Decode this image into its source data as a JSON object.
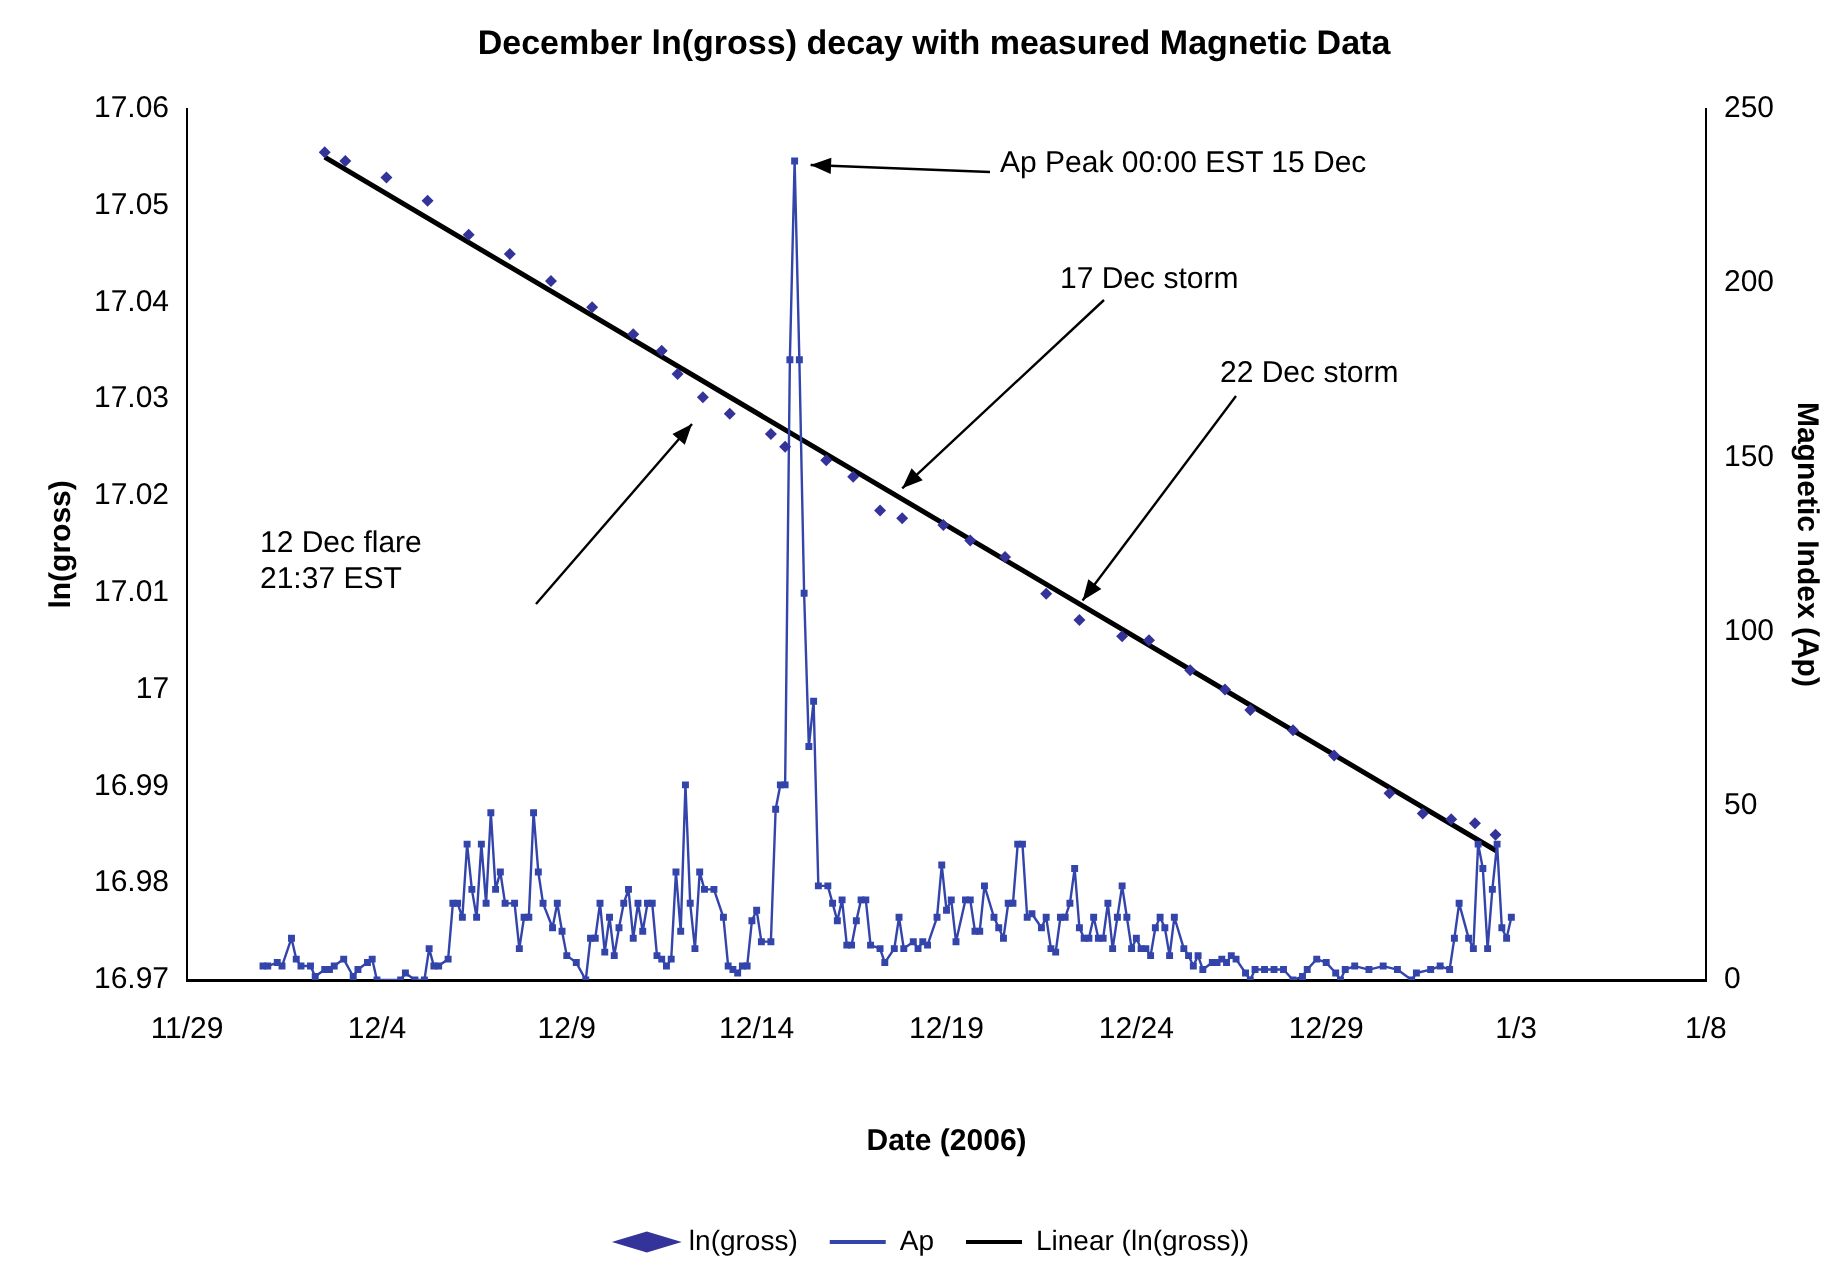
{
  "chart_data": {
    "type": "scatter",
    "title": "December ln(gross) decay with measured Magnetic Data",
    "xlabel": "Date (2006)",
    "ylabel": "ln(gross)",
    "y2label": "Magnetic Index (Ap)",
    "xlim": [
      "2006-11-29",
      "2007-01-08"
    ],
    "xticks": [
      {
        "value": "2006-11-29",
        "label": "11/29"
      },
      {
        "value": "2006-12-04",
        "label": "12/4"
      },
      {
        "value": "2006-12-09",
        "label": "12/9"
      },
      {
        "value": "2006-12-14",
        "label": "12/14"
      },
      {
        "value": "2006-12-19",
        "label": "12/19"
      },
      {
        "value": "2006-12-24",
        "label": "12/24"
      },
      {
        "value": "2006-12-29",
        "label": "12/29"
      },
      {
        "value": "2007-01-03",
        "label": "1/3"
      },
      {
        "value": "2007-01-08",
        "label": "1/8"
      }
    ],
    "ylim": [
      16.97,
      17.06
    ],
    "yticks": [
      16.97,
      16.98,
      16.99,
      17,
      17.01,
      17.02,
      17.03,
      17.04,
      17.05,
      17.06
    ],
    "y2lim": [
      0,
      250
    ],
    "y2ticks": [
      0,
      50,
      100,
      150,
      200,
      250
    ],
    "grid": false,
    "legend": "bottom",
    "annotations": [
      "Ap Peak 00:00 EST 15 Dec",
      {
        "text": "17 Dec storm",
        "x": "2006-12-17T20:00",
        "y": 17.0208
      },
      {
        "text": "22 Dec storm",
        "x": "2006-12-22T14:00",
        "y": 17.0092
      },
      "12 Dec flare 21:37 EST"
    ],
    "series": [
      {
        "name": "ln(gross)",
        "marker": "diamond",
        "color": "#33339a",
        "x": [
          "2006-12-02T15:00",
          "2006-12-03T04:00",
          "2006-12-04T06:00",
          "2006-12-05T08:00",
          "2006-12-06T10:00",
          "2006-12-07T12:00",
          "2006-12-08T14:00",
          "2006-12-09T16:00",
          "2006-12-10T18:00",
          "2006-12-11T12:00",
          "2006-12-11T22:00",
          "2006-12-12T14:00",
          "2006-12-13T07:00",
          "2006-12-14T09:00",
          "2006-12-14T18:00",
          "2006-12-15T20:00",
          "2006-12-16T13:00",
          "2006-12-17T06:00",
          "2006-12-17T20:00",
          "2006-12-18T22:00",
          "2006-12-19T15:00",
          "2006-12-20T13:00",
          "2006-12-21T15:00",
          "2006-12-22T12:00",
          "2006-12-23T15:00",
          "2006-12-24T08:00",
          "2006-12-25T10:00",
          "2006-12-26T08:00",
          "2006-12-27T00:00",
          "2006-12-28T03:00",
          "2006-12-29T05:00",
          "2006-12-30T16:00",
          "2006-12-31T13:00",
          "2007-01-01T07:00",
          "2007-01-01T22:00",
          "2007-01-02T11:00"
        ],
        "values": [
          17.0555,
          17.0546,
          17.0529,
          17.0505,
          17.047,
          17.045,
          17.0422,
          17.0395,
          17.0367,
          17.035,
          17.0326,
          17.0302,
          17.0285,
          17.0264,
          17.0251,
          17.0237,
          17.022,
          17.0185,
          17.0177,
          17.017,
          17.0154,
          17.0137,
          17.0099,
          17.0072,
          17.0055,
          17.0051,
          17.002,
          17.0,
          16.9979,
          16.9958,
          16.9932,
          16.9893,
          16.9872,
          16.9866,
          16.9862,
          16.985
        ]
      },
      {
        "name": "Ap",
        "type": "line",
        "axis": "y2",
        "marker": "square",
        "color": "#3344aa",
        "x": [
          "2006-12-01T00:00",
          "2006-12-01T03:00",
          "2006-12-01T09:00",
          "2006-12-01T12:00",
          "2006-12-01T18:00",
          "2006-12-01T21:00",
          "2006-12-02T00:00",
          "2006-12-02T06:00",
          "2006-12-02T09:00",
          "2006-12-02T15:00",
          "2006-12-02T18:00",
          "2006-12-02T21:00",
          "2006-12-03T03:00",
          "2006-12-03T09:00",
          "2006-12-03T12:00",
          "2006-12-03T18:00",
          "2006-12-03T21:00",
          "2006-12-04T00:00",
          "2006-12-04T15:00",
          "2006-12-04T18:00",
          "2006-12-05T00:00",
          "2006-12-05T06:00",
          "2006-12-05T09:00",
          "2006-12-05T12:00",
          "2006-12-05T15:00",
          "2006-12-05T21:00",
          "2006-12-06T00:00",
          "2006-12-06T03:00",
          "2006-12-06T06:00",
          "2006-12-06T09:00",
          "2006-12-06T12:00",
          "2006-12-06T15:00",
          "2006-12-06T18:00",
          "2006-12-06T21:00",
          "2006-12-07T00:00",
          "2006-12-07T03:00",
          "2006-12-07T06:00",
          "2006-12-07T09:00",
          "2006-12-07T15:00",
          "2006-12-07T18:00",
          "2006-12-07T21:00",
          "2006-12-08T00:00",
          "2006-12-08T03:00",
          "2006-12-08T06:00",
          "2006-12-08T09:00",
          "2006-12-08T15:00",
          "2006-12-08T18:00",
          "2006-12-08T21:00",
          "2006-12-09T00:00",
          "2006-12-09T06:00",
          "2006-12-09T12:00",
          "2006-12-09T15:00",
          "2006-12-09T18:00",
          "2006-12-09T21:00",
          "2006-12-10T00:00",
          "2006-12-10T03:00",
          "2006-12-10T06:00",
          "2006-12-10T09:00",
          "2006-12-10T12:00",
          "2006-12-10T15:00",
          "2006-12-10T18:00",
          "2006-12-10T21:00",
          "2006-12-11T00:00",
          "2006-12-11T03:00",
          "2006-12-11T06:00",
          "2006-12-11T09:00",
          "2006-12-11T12:00",
          "2006-12-11T15:00",
          "2006-12-11T18:00",
          "2006-12-11T21:00",
          "2006-12-12T00:00",
          "2006-12-12T03:00",
          "2006-12-12T06:00",
          "2006-12-12T09:00",
          "2006-12-12T12:00",
          "2006-12-12T15:00",
          "2006-12-12T21:00",
          "2006-12-13T03:00",
          "2006-12-13T06:00",
          "2006-12-13T09:00",
          "2006-12-13T12:00",
          "2006-12-13T15:00",
          "2006-12-13T18:00",
          "2006-12-13T21:00",
          "2006-12-14T00:00",
          "2006-12-14T03:00",
          "2006-12-14T09:00",
          "2006-12-14T12:00",
          "2006-12-14T15:00",
          "2006-12-14T18:00",
          "2006-12-14T21:00",
          "2006-12-15T00:00",
          "2006-12-15T03:00",
          "2006-12-15T06:00",
          "2006-12-15T09:00",
          "2006-12-15T12:00",
          "2006-12-15T15:00",
          "2006-12-15T21:00",
          "2006-12-16T00:00",
          "2006-12-16T03:00",
          "2006-12-16T06:00",
          "2006-12-16T09:00",
          "2006-12-16T12:00",
          "2006-12-16T15:00",
          "2006-12-16T18:00",
          "2006-12-16T21:00",
          "2006-12-17T00:00",
          "2006-12-17T06:00",
          "2006-12-17T09:00",
          "2006-12-17T15:00",
          "2006-12-17T18:00",
          "2006-12-17T21:00",
          "2006-12-18T03:00",
          "2006-12-18T06:00",
          "2006-12-18T09:00",
          "2006-12-18T12:00",
          "2006-12-18T18:00",
          "2006-12-18T21:00",
          "2006-12-19T00:00",
          "2006-12-19T03:00",
          "2006-12-19T06:00",
          "2006-12-19T12:00",
          "2006-12-19T15:00",
          "2006-12-19T18:00",
          "2006-12-19T21:00",
          "2006-12-20T00:00",
          "2006-12-20T06:00",
          "2006-12-20T09:00",
          "2006-12-20T12:00",
          "2006-12-20T15:00",
          "2006-12-20T18:00",
          "2006-12-20T21:00",
          "2006-12-21T00:00",
          "2006-12-21T03:00",
          "2006-12-21T06:00",
          "2006-12-21T12:00",
          "2006-12-21T15:00",
          "2006-12-21T18:00",
          "2006-12-21T21:00",
          "2006-12-22T00:00",
          "2006-12-22T03:00",
          "2006-12-22T06:00",
          "2006-12-22T09:00",
          "2006-12-22T12:00",
          "2006-12-22T15:00",
          "2006-12-22T18:00",
          "2006-12-22T21:00",
          "2006-12-23T00:00",
          "2006-12-23T03:00",
          "2006-12-23T06:00",
          "2006-12-23T09:00",
          "2006-12-23T12:00",
          "2006-12-23T15:00",
          "2006-12-23T18:00",
          "2006-12-23T21:00",
          "2006-12-24T00:00",
          "2006-12-24T03:00",
          "2006-12-24T06:00",
          "2006-12-24T09:00",
          "2006-12-24T12:00",
          "2006-12-24T15:00",
          "2006-12-24T18:00",
          "2006-12-24T21:00",
          "2006-12-25T00:00",
          "2006-12-25T06:00",
          "2006-12-25T09:00",
          "2006-12-25T12:00",
          "2006-12-25T15:00",
          "2006-12-25T18:00",
          "2006-12-26T00:00",
          "2006-12-26T03:00",
          "2006-12-26T06:00",
          "2006-12-26T09:00",
          "2006-12-26T12:00",
          "2006-12-26T15:00",
          "2006-12-26T21:00",
          "2006-12-27T00:00",
          "2006-12-27T03:00",
          "2006-12-27T09:00",
          "2006-12-27T15:00",
          "2006-12-27T21:00",
          "2006-12-28T03:00",
          "2006-12-28T09:00",
          "2006-12-28T12:00",
          "2006-12-28T18:00",
          "2006-12-29T00:00",
          "2006-12-29T06:00",
          "2006-12-29T09:00",
          "2006-12-29T12:00",
          "2006-12-29T18:00",
          "2006-12-30T03:00",
          "2006-12-30T12:00",
          "2006-12-30T21:00",
          "2006-12-31T06:00",
          "2006-12-31T09:00",
          "2006-12-31T18:00",
          "2007-01-01T00:00",
          "2007-01-01T06:00",
          "2007-01-01T09:00",
          "2007-01-01T12:00",
          "2007-01-01T18:00",
          "2007-01-01T21:00",
          "2007-01-02T00:00",
          "2007-01-02T03:00",
          "2007-01-02T06:00",
          "2007-01-02T09:00",
          "2007-01-02T12:00",
          "2007-01-02T15:00",
          "2007-01-02T18:00",
          "2007-01-02T21:00"
        ],
        "values": [
          4,
          4,
          5,
          4,
          12,
          6,
          4,
          4,
          1,
          3,
          3,
          4,
          6,
          1,
          3,
          5,
          6,
          0,
          0,
          2,
          0,
          0,
          9,
          4,
          4,
          6,
          22,
          22,
          18,
          39,
          26,
          18,
          39,
          22,
          48,
          26,
          31,
          22,
          22,
          9,
          18,
          18,
          48,
          31,
          22,
          15,
          22,
          14,
          7,
          5,
          0,
          12,
          12,
          22,
          8,
          18,
          7,
          15,
          22,
          26,
          12,
          22,
          14,
          22,
          22,
          7,
          6,
          4,
          6,
          31,
          14,
          56,
          22,
          9,
          31,
          26,
          26,
          18,
          4,
          3,
          2,
          4,
          4,
          17,
          20,
          11,
          11,
          49,
          56,
          56,
          178,
          235,
          178,
          111,
          67,
          80,
          27,
          27,
          22,
          17,
          23,
          10,
          10,
          17,
          23,
          23,
          10,
          9,
          5,
          9,
          18,
          9,
          11,
          9,
          11,
          10,
          18,
          33,
          20,
          23,
          11,
          23,
          23,
          14,
          14,
          27,
          18,
          15,
          12,
          22,
          22,
          39,
          39,
          18,
          19,
          15,
          18,
          9,
          8,
          18,
          18,
          22,
          32,
          15,
          12,
          12,
          18,
          12,
          12,
          22,
          9,
          18,
          27,
          18,
          9,
          12,
          9,
          9,
          7,
          15,
          18,
          15,
          7,
          18,
          9,
          7,
          4,
          7,
          3,
          5,
          5,
          6,
          5,
          7,
          6,
          2,
          0,
          3,
          3,
          3,
          3,
          0,
          1,
          3,
          6,
          5,
          2,
          0,
          3,
          4,
          3,
          4,
          3,
          0,
          2,
          3,
          4,
          3,
          12,
          22,
          12,
          9,
          39,
          32,
          9,
          26,
          39,
          15,
          12,
          18
        ]
      },
      {
        "name": "Linear (ln(gross))",
        "type": "line",
        "marker": "none",
        "color": "#000000",
        "x": [
          "2006-12-02T15:00",
          "2007-01-02T12:00"
        ],
        "values": [
          17.055,
          16.9833
        ]
      }
    ]
  }
}
